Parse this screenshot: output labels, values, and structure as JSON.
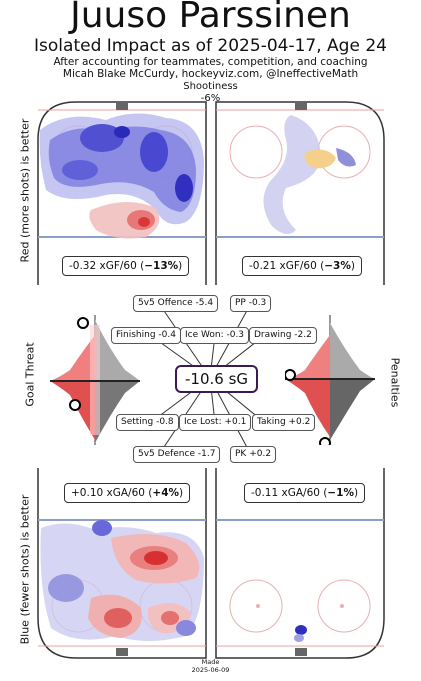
{
  "header": {
    "player": "Juuso Parssinen",
    "subtitle": "Isolated Impact as of 2025-04-17, Age 24",
    "note": "After accounting for teammates, competition, and coaching",
    "credit": "Micah Blake McCurdy, hockeyviz.com, @IneffectiveMath",
    "shootiness_label": "Shootiness",
    "shootiness_value": "-6%"
  },
  "axes": {
    "top_left": "Red (more shots) is better",
    "bottom_left": "Blue (fewer shots) is better",
    "goal_threat": "Goal Threat",
    "penalties": "Penalties"
  },
  "rinks": {
    "offence_left": "-0.32 xGF/60 (",
    "offence_left_pct": "−13%",
    "offence_right": "-0.21 xGF/60 (",
    "offence_right_pct": "−3%",
    "defence_left": "+0.10 xGA/60 (",
    "defence_left_pct": "+4%",
    "defence_right": "-0.11 xGA/60 (",
    "defence_right_pct": "−1%"
  },
  "impact": {
    "total": "-10.6 sG",
    "offence5v5": "5v5 Offence -5.4",
    "pp": "PP -0.3",
    "finishing": "Finishing -0.4",
    "icewon": "Ice Won: -0.3",
    "drawing": "Drawing -2.2",
    "setting": "Setting -0.8",
    "icelost": "Ice Lost: +0.1",
    "taking": "Taking +0.2",
    "defence5v5": "5v5 Defence -1.7",
    "pk": "PK +0.2"
  },
  "footer": {
    "made": "Made",
    "date": "2025-06-09"
  },
  "colors": {
    "good_red": "#e03030",
    "bad_blue": "#3030d0",
    "total_border": "#3a1a55"
  }
}
